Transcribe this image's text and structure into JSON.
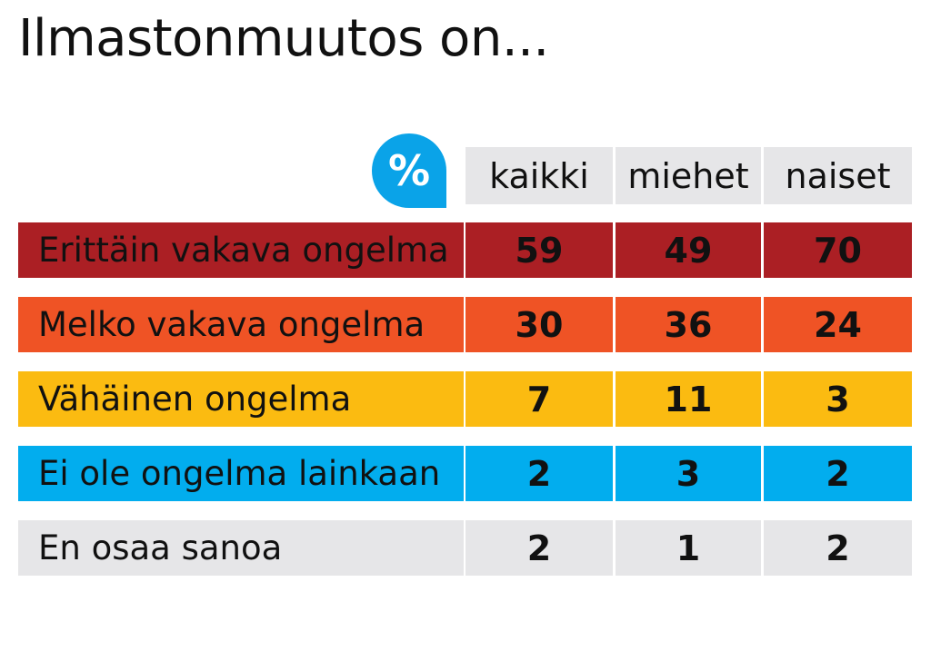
{
  "title": "Ilmastonmuutos on...",
  "unit_badge": "%",
  "colors": {
    "row_0": "#ab1f24",
    "row_1": "#ef5325",
    "row_2": "#fbbb11",
    "row_3": "#02adee",
    "row_4": "#e6e6e8",
    "badge": "#0aa3e8"
  },
  "chart_data": {
    "type": "table",
    "title": "Ilmastonmuutos on...",
    "unit": "%",
    "columns": [
      "kaikki",
      "miehet",
      "naiset"
    ],
    "rows": [
      {
        "label": "Erittäin vakava ongelma",
        "values": [
          "59",
          "49",
          "70"
        ]
      },
      {
        "label": "Melko vakava ongelma",
        "values": [
          "30",
          "36",
          "24"
        ]
      },
      {
        "label": "Vähäinen ongelma",
        "values": [
          "7",
          "11",
          "3"
        ]
      },
      {
        "label": "Ei ole ongelma lainkaan",
        "values": [
          "2",
          "3",
          "2"
        ]
      },
      {
        "label": "En osaa sanoa",
        "values": [
          "2",
          "1",
          "2"
        ]
      }
    ]
  }
}
